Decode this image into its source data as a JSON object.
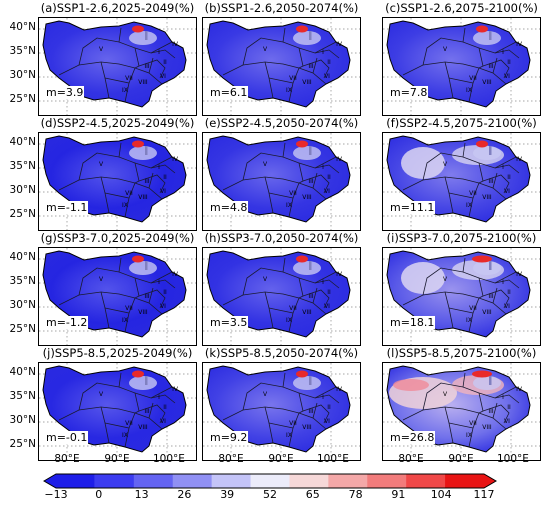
{
  "panels": [
    {
      "title": "(a)SSP1-2.6,2025-2049(%)",
      "m": "m=3.9",
      "anomaly": 3.9
    },
    {
      "title": "(b)SSP1-2.6,2050-2074(%)",
      "m": "m=6.1",
      "anomaly": 6.1
    },
    {
      "title": "(c)SSP1-2.6,2075-2100(%)",
      "m": "m=7.8",
      "anomaly": 7.8
    },
    {
      "title": "(d)SSP2-4.5,2025-2049(%)",
      "m": "m=-1.1",
      "anomaly": -1.1
    },
    {
      "title": "(e)SSP2-4.5,2050-2074(%)",
      "m": "m=4.8",
      "anomaly": 4.8
    },
    {
      "title": "(f)SSP2-4.5,2075-2100(%)",
      "m": "m=11.1",
      "anomaly": 11.1
    },
    {
      "title": "(g)SSP3-7.0,2025-2049(%)",
      "m": "m=-1.2",
      "anomaly": -1.2
    },
    {
      "title": "(h)SSP3-7.0,2050-2074(%)",
      "m": "m=3.5",
      "anomaly": 3.5
    },
    {
      "title": "(i)SSP3-7.0,2075-2100(%)",
      "m": "m=18.1",
      "anomaly": 18.1
    },
    {
      "title": "(j)SSP5-8.5,2025-2049(%)",
      "m": "m=-0.1",
      "anomaly": -0.1
    },
    {
      "title": "(k)SSP5-8.5,2050-2074(%)",
      "m": "m=9.2",
      "anomaly": 9.2
    },
    {
      "title": "(l)SSP5-8.5,2075-2100(%)",
      "m": "m=26.8",
      "anomaly": 26.8
    }
  ],
  "lat_ticks": [
    "40°N",
    "35°N",
    "30°N",
    "25°N"
  ],
  "lon_ticks": [
    "80°E",
    "90°E",
    "100°E"
  ],
  "region_labels": [
    "I",
    "II",
    "III",
    "IV",
    "V",
    "VI",
    "VII",
    "VIII",
    "IX"
  ],
  "colorbar": {
    "ticks": [
      "−13",
      "0",
      "13",
      "26",
      "39",
      "52",
      "65",
      "78",
      "91",
      "104",
      "117"
    ],
    "colors": [
      "#1e1ee8",
      "#3c3cf0",
      "#6464f2",
      "#9090f4",
      "#c4c4f8",
      "#ececfa",
      "#f6d8d8",
      "#f4a8a8",
      "#f27c7c",
      "#f04848",
      "#e81414"
    ]
  }
}
